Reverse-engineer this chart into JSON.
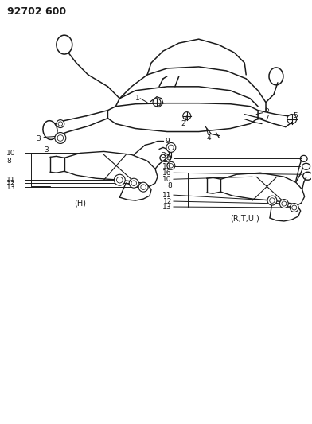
{
  "title_text": "92702 600",
  "background_color": "#ffffff",
  "line_color": "#1a1a1a",
  "text_color": "#1a1a1a",
  "fig_width": 3.92,
  "fig_height": 5.33,
  "dpi": 100
}
